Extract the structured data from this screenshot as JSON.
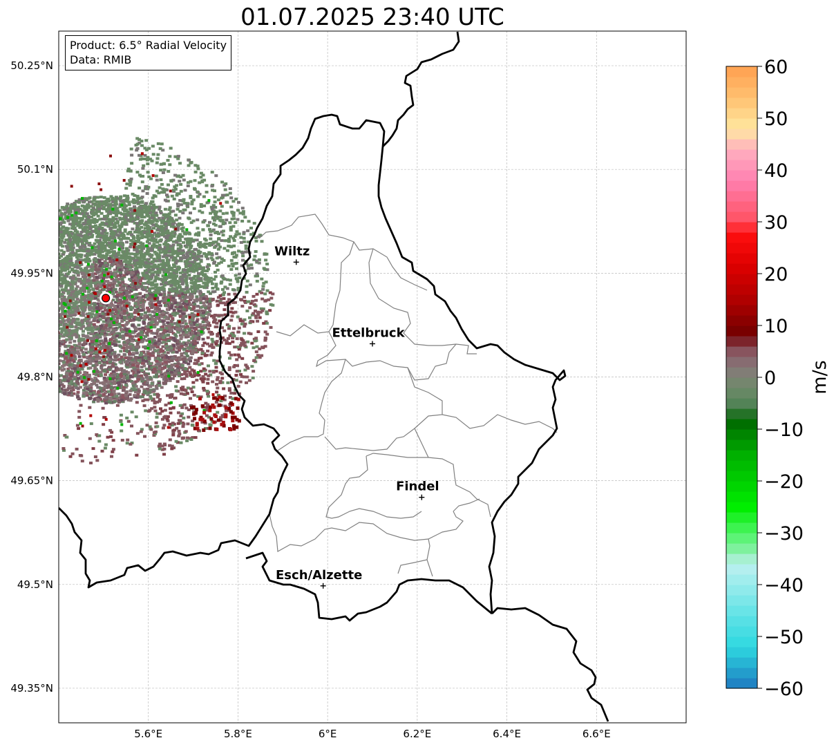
{
  "title": "01.07.2025 23:40 UTC",
  "info": {
    "product": "Product: 6.5° Radial Velocity",
    "source": "Data: RMIB"
  },
  "map": {
    "lon_range": [
      5.4,
      6.8
    ],
    "lat_range": [
      49.3,
      50.3
    ],
    "lon_ticks": [
      {
        "value": 5.6,
        "label": "5.6°E"
      },
      {
        "value": 5.8,
        "label": "5.8°E"
      },
      {
        "value": 6.0,
        "label": "6°E"
      },
      {
        "value": 6.2,
        "label": "6.2°E"
      },
      {
        "value": 6.4,
        "label": "6.4°E"
      },
      {
        "value": 6.6,
        "label": "6.6°E"
      }
    ],
    "lat_ticks": [
      {
        "value": 49.35,
        "label": "49.35°N"
      },
      {
        "value": 49.5,
        "label": "49.5°N"
      },
      {
        "value": 49.65,
        "label": "49.65°N"
      },
      {
        "value": 49.8,
        "label": "49.8°N"
      },
      {
        "value": 49.95,
        "label": "49.95°N"
      },
      {
        "value": 50.1,
        "label": "50.1°N"
      },
      {
        "value": 50.25,
        "label": "50.25°N"
      }
    ],
    "gridlines": true,
    "cities": [
      {
        "name": "Wiltz",
        "lon": 5.93,
        "lat": 49.966
      },
      {
        "name": "Ettelbruck",
        "lon": 6.1,
        "lat": 49.848
      },
      {
        "name": "Findel",
        "lon": 6.21,
        "lat": 49.626
      },
      {
        "name": "Esch/Alzette",
        "lon": 5.99,
        "lat": 49.498
      }
    ],
    "radar_site": {
      "lon": 5.505,
      "lat": 49.914,
      "color": "#ff0000"
    },
    "border_color": "#000000",
    "canton_color": "#808080"
  },
  "colorbar": {
    "unit": "m/s",
    "min": -60,
    "max": 60,
    "ticks": [
      {
        "value": 60,
        "label": "60"
      },
      {
        "value": 50,
        "label": "50"
      },
      {
        "value": 40,
        "label": "40"
      },
      {
        "value": 30,
        "label": "30"
      },
      {
        "value": 20,
        "label": "20"
      },
      {
        "value": 10,
        "label": "10"
      },
      {
        "value": 0,
        "label": "0"
      },
      {
        "value": -10,
        "label": "−10"
      },
      {
        "value": -20,
        "label": "−20"
      },
      {
        "value": -30,
        "label": "−30"
      },
      {
        "value": -40,
        "label": "−40"
      },
      {
        "value": -50,
        "label": "−50"
      },
      {
        "value": -60,
        "label": "−60"
      }
    ],
    "stops": [
      {
        "value": -60,
        "color": "#1f78c0"
      },
      {
        "value": -56,
        "color": "#24a9d0"
      },
      {
        "value": -52,
        "color": "#2ed8e0"
      },
      {
        "value": -46,
        "color": "#5fe2e6"
      },
      {
        "value": -40,
        "color": "#98ecec"
      },
      {
        "value": -36,
        "color": "#bdf0f0"
      },
      {
        "value": -34,
        "color": "#8ff0b0"
      },
      {
        "value": -30,
        "color": "#4cf464"
      },
      {
        "value": -25,
        "color": "#00ee00"
      },
      {
        "value": -15,
        "color": "#00b000"
      },
      {
        "value": -8,
        "color": "#006400"
      },
      {
        "value": -6,
        "color": "#4a8050"
      },
      {
        "value": -2,
        "color": "#6f8a6a"
      },
      {
        "value": 2,
        "color": "#87787a"
      },
      {
        "value": 6,
        "color": "#884855"
      },
      {
        "value": 8,
        "color": "#700000"
      },
      {
        "value": 15,
        "color": "#b00000"
      },
      {
        "value": 22,
        "color": "#e00000"
      },
      {
        "value": 28,
        "color": "#ff1010"
      },
      {
        "value": 30,
        "color": "#ff5060"
      },
      {
        "value": 38,
        "color": "#ff80b0"
      },
      {
        "value": 44,
        "color": "#ffb0c0"
      },
      {
        "value": 48,
        "color": "#ffe8a0"
      },
      {
        "value": 54,
        "color": "#ffc070"
      },
      {
        "value": 60,
        "color": "#ffa050"
      }
    ]
  }
}
